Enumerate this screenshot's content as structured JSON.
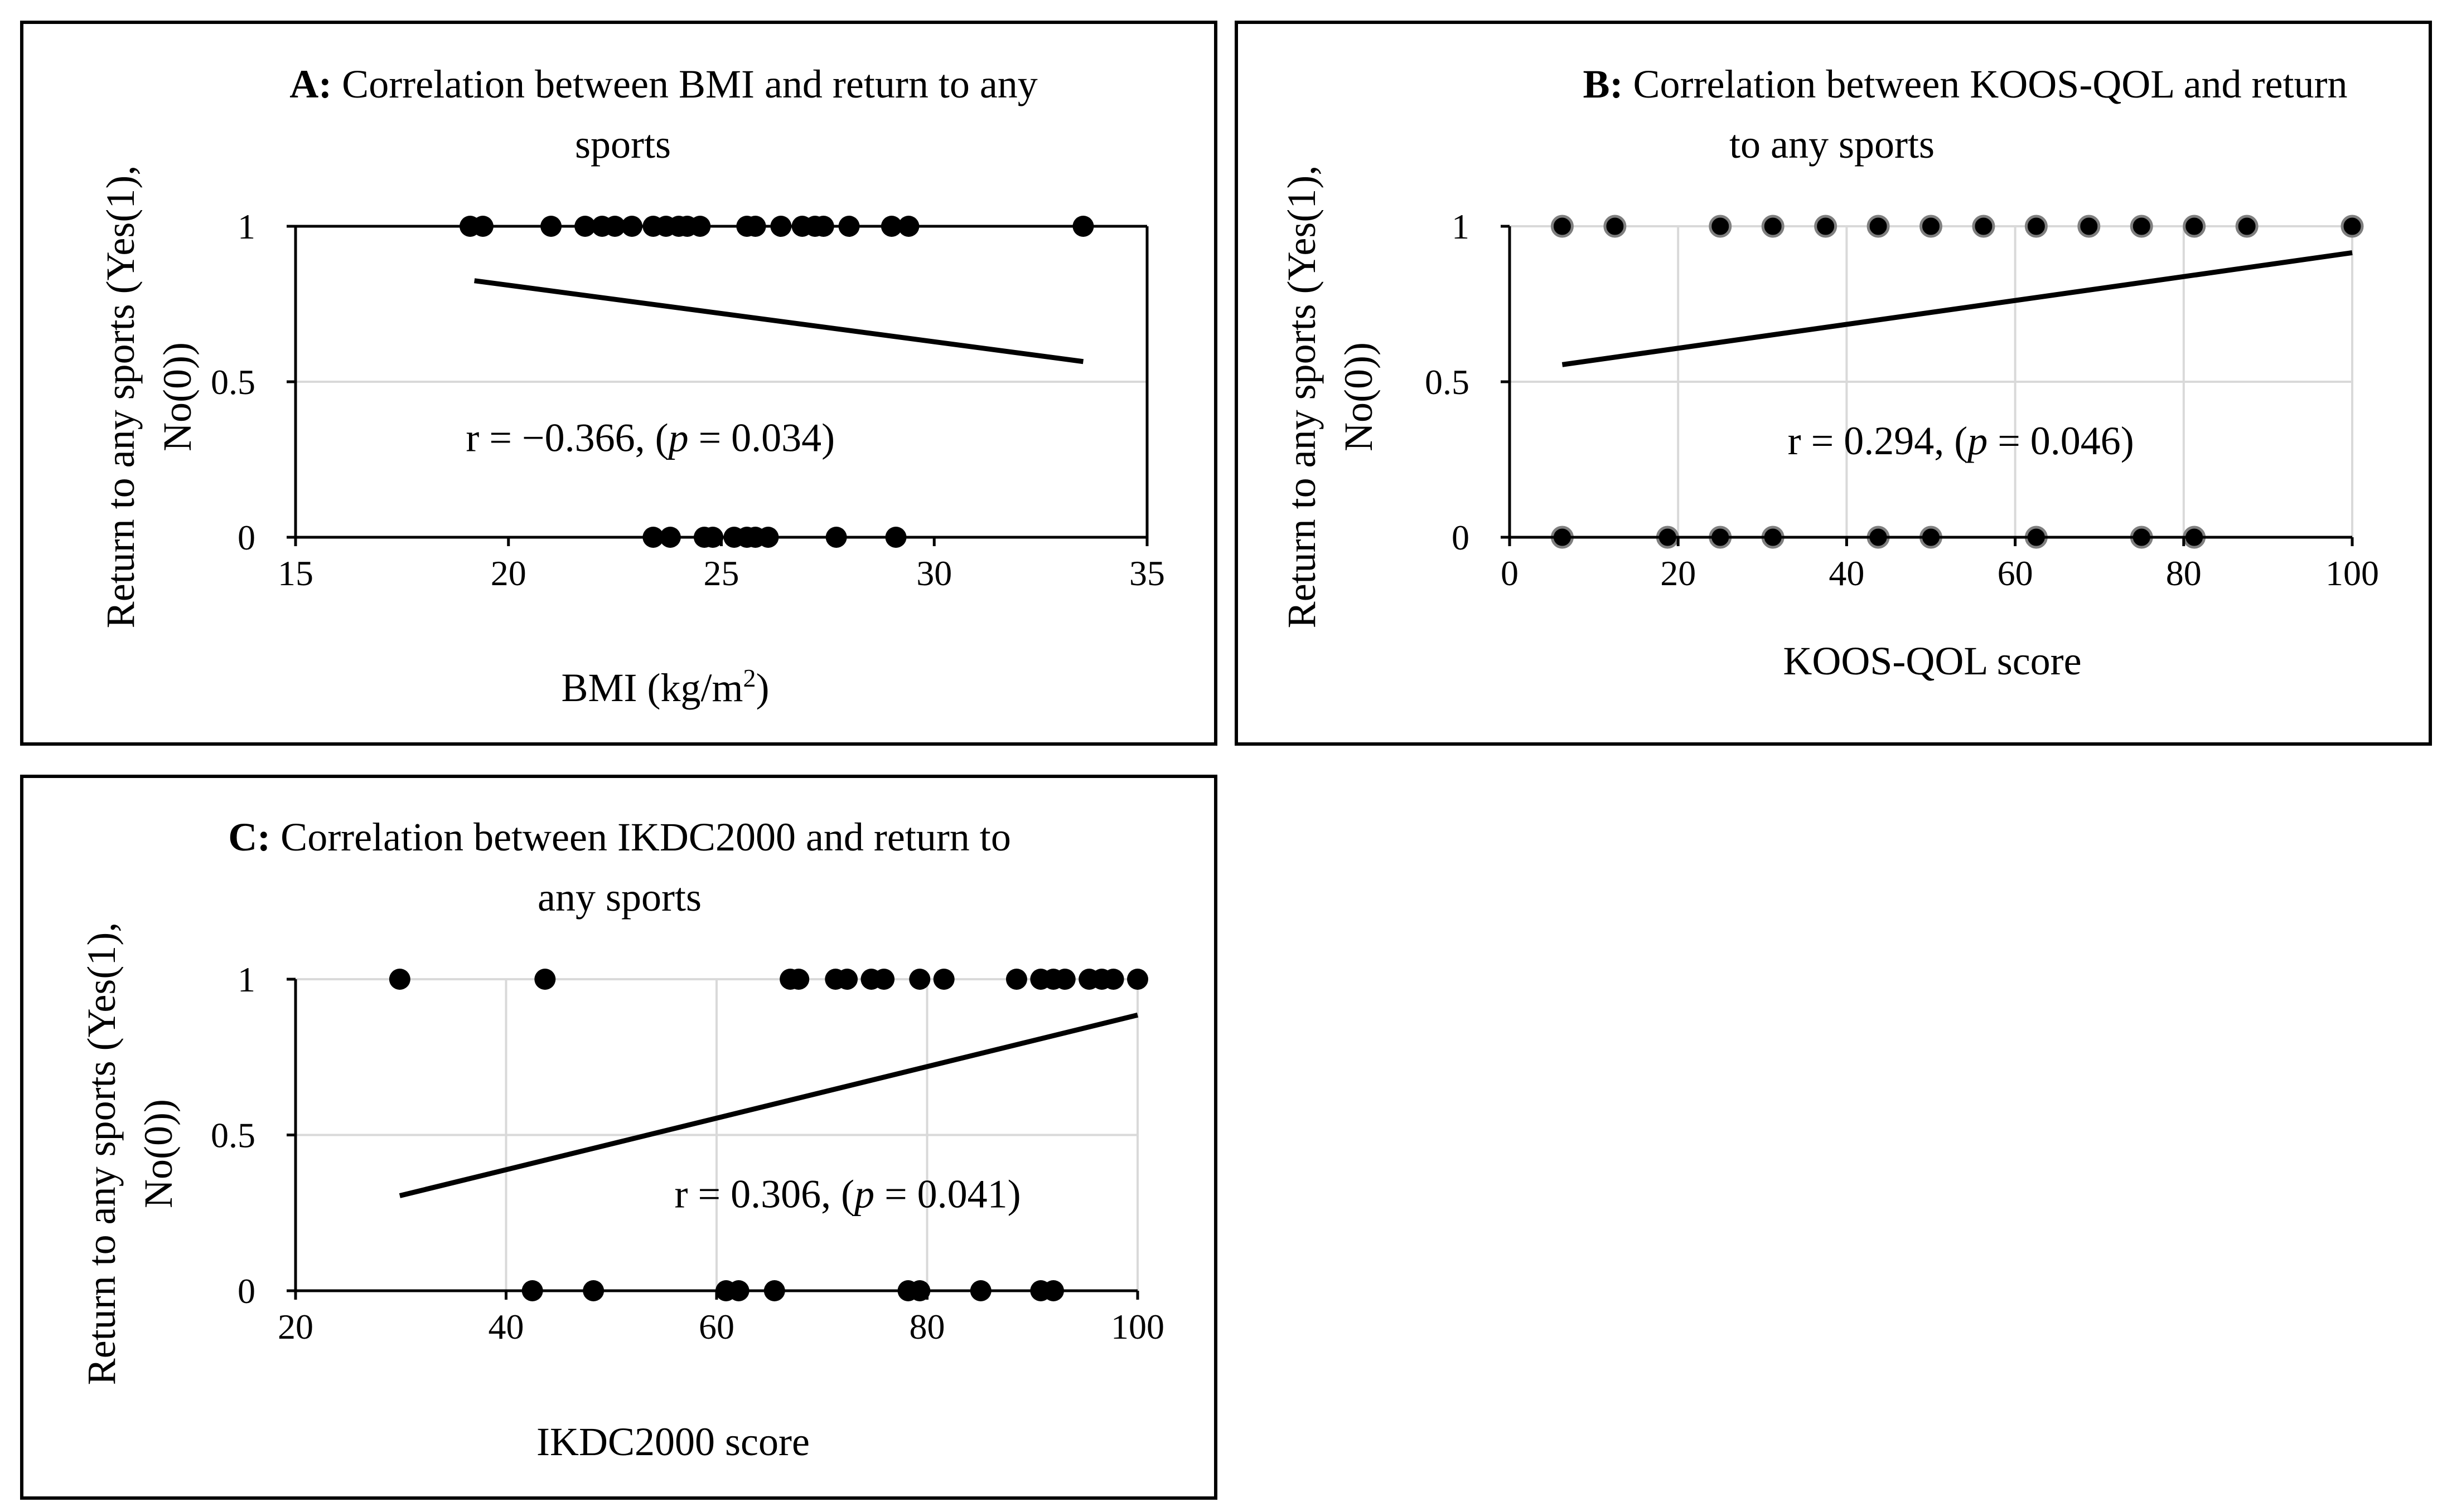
{
  "colors": {
    "ink": "#000000",
    "grid": "#d9d9d9",
    "background": "#ffffff",
    "marker_edge_b": "#7f7f7f"
  },
  "chart_data": [
    {
      "id": "A",
      "type": "scatter",
      "panel_label": "A:",
      "title_line1": "Correlation between BMI and return to any",
      "title_line2": "sports",
      "xlabel": "BMI (kg/m",
      "xlabel_sup": "2",
      "xlabel_tail": ")",
      "ylabel_line1": "Return to any sports (Yes(1),",
      "ylabel_line2": "No(0))",
      "xlim": [
        15,
        35
      ],
      "ylim": [
        0,
        1
      ],
      "xticks": [
        15,
        20,
        25,
        30,
        35
      ],
      "xtick_labels": [
        "15",
        "20",
        "25",
        "30",
        "35"
      ],
      "yticks": [
        0,
        0.5,
        1
      ],
      "ytick_labels": [
        "0",
        "0.5",
        "1"
      ],
      "vertical_grid": false,
      "annotation_prefix": "r = −0.366, (",
      "annotation_italic": "p",
      "annotation_suffix": " = 0.034)",
      "annotation_pos": [
        19,
        0.32
      ],
      "points": [
        {
          "x": 19.1,
          "y": 1
        },
        {
          "x": 19.4,
          "y": 1
        },
        {
          "x": 21.0,
          "y": 1
        },
        {
          "x": 21.8,
          "y": 1
        },
        {
          "x": 22.2,
          "y": 1
        },
        {
          "x": 22.5,
          "y": 1
        },
        {
          "x": 22.9,
          "y": 1
        },
        {
          "x": 23.4,
          "y": 1
        },
        {
          "x": 23.7,
          "y": 1
        },
        {
          "x": 24.0,
          "y": 1
        },
        {
          "x": 24.2,
          "y": 1
        },
        {
          "x": 24.5,
          "y": 1
        },
        {
          "x": 25.6,
          "y": 1
        },
        {
          "x": 25.8,
          "y": 1
        },
        {
          "x": 26.4,
          "y": 1
        },
        {
          "x": 26.9,
          "y": 1
        },
        {
          "x": 27.2,
          "y": 1
        },
        {
          "x": 27.4,
          "y": 1
        },
        {
          "x": 28.0,
          "y": 1
        },
        {
          "x": 29.0,
          "y": 1
        },
        {
          "x": 29.4,
          "y": 1
        },
        {
          "x": 33.5,
          "y": 1
        },
        {
          "x": 23.4,
          "y": 0
        },
        {
          "x": 23.8,
          "y": 0
        },
        {
          "x": 24.6,
          "y": 0
        },
        {
          "x": 24.8,
          "y": 0
        },
        {
          "x": 25.3,
          "y": 0
        },
        {
          "x": 25.6,
          "y": 0
        },
        {
          "x": 25.8,
          "y": 0
        },
        {
          "x": 26.1,
          "y": 0
        },
        {
          "x": 27.7,
          "y": 0
        },
        {
          "x": 29.1,
          "y": 0
        }
      ],
      "trendline": [
        [
          19.2,
          0.825
        ],
        [
          33.5,
          0.565
        ]
      ]
    },
    {
      "id": "B",
      "type": "scatter",
      "panel_label": "B:",
      "title_line1": "Correlation between KOOS-QOL and return",
      "title_line2": "to any sports",
      "xlabel": "KOOS-QOL score",
      "xlabel_sup": "",
      "xlabel_tail": "",
      "ylabel_line1": "Return to any sports (Yes(1),",
      "ylabel_line2": "No(0))",
      "xlim": [
        0,
        100
      ],
      "ylim": [
        0,
        1
      ],
      "xticks": [
        0,
        20,
        40,
        60,
        80,
        100
      ],
      "xtick_labels": [
        "0",
        "20",
        "40",
        "60",
        "80",
        "100"
      ],
      "yticks": [
        0,
        0.5,
        1
      ],
      "ytick_labels": [
        "0",
        "0.5",
        "1"
      ],
      "vertical_grid": true,
      "annotation_prefix": "r = 0.294, (",
      "annotation_italic": "p",
      "annotation_suffix": " = 0.046)",
      "annotation_pos": [
        33,
        0.31
      ],
      "points": [
        {
          "x": 6.25,
          "y": 1
        },
        {
          "x": 12.5,
          "y": 1
        },
        {
          "x": 25,
          "y": 1
        },
        {
          "x": 31.25,
          "y": 1
        },
        {
          "x": 37.5,
          "y": 1
        },
        {
          "x": 43.75,
          "y": 1
        },
        {
          "x": 50,
          "y": 1
        },
        {
          "x": 56.25,
          "y": 1
        },
        {
          "x": 62.5,
          "y": 1
        },
        {
          "x": 68.75,
          "y": 1
        },
        {
          "x": 75,
          "y": 1
        },
        {
          "x": 81.25,
          "y": 1
        },
        {
          "x": 87.5,
          "y": 1
        },
        {
          "x": 100,
          "y": 1
        },
        {
          "x": 6.25,
          "y": 0
        },
        {
          "x": 18.75,
          "y": 0
        },
        {
          "x": 25,
          "y": 0
        },
        {
          "x": 31.25,
          "y": 0
        },
        {
          "x": 43.75,
          "y": 0
        },
        {
          "x": 50,
          "y": 0
        },
        {
          "x": 62.5,
          "y": 0
        },
        {
          "x": 75,
          "y": 0
        },
        {
          "x": 81.25,
          "y": 0
        }
      ],
      "trendline": [
        [
          6.25,
          0.555
        ],
        [
          100,
          0.915
        ]
      ]
    },
    {
      "id": "C",
      "type": "scatter",
      "panel_label": "C:",
      "title_line1": "Correlation between IKDC2000 and return to",
      "title_line2": "any sports",
      "xlabel": "IKDC2000 score",
      "xlabel_sup": "",
      "xlabel_tail": "",
      "ylabel_line1": "Return to any sports (Yes(1),",
      "ylabel_line2": "No(0))",
      "xlim": [
        20,
        100
      ],
      "ylim": [
        0,
        1
      ],
      "xticks": [
        20,
        40,
        60,
        80,
        100
      ],
      "xtick_labels": [
        "20",
        "40",
        "60",
        "80",
        "100"
      ],
      "yticks": [
        0,
        0.5,
        1
      ],
      "ytick_labels": [
        "0",
        "0.5",
        "1"
      ],
      "vertical_grid": true,
      "annotation_prefix": "r = 0.306, (",
      "annotation_italic": "p",
      "annotation_suffix": " = 0.041)",
      "annotation_pos": [
        56,
        0.31
      ],
      "points": [
        {
          "x": 29.9,
          "y": 1
        },
        {
          "x": 43.7,
          "y": 1
        },
        {
          "x": 67.0,
          "y": 1
        },
        {
          "x": 67.8,
          "y": 1
        },
        {
          "x": 71.3,
          "y": 1
        },
        {
          "x": 72.4,
          "y": 1
        },
        {
          "x": 74.7,
          "y": 1
        },
        {
          "x": 75.9,
          "y": 1
        },
        {
          "x": 79.3,
          "y": 1
        },
        {
          "x": 81.6,
          "y": 1
        },
        {
          "x": 88.5,
          "y": 1
        },
        {
          "x": 90.8,
          "y": 1
        },
        {
          "x": 92.0,
          "y": 1
        },
        {
          "x": 93.1,
          "y": 1
        },
        {
          "x": 95.4,
          "y": 1
        },
        {
          "x": 96.6,
          "y": 1
        },
        {
          "x": 97.7,
          "y": 1
        },
        {
          "x": 100,
          "y": 1
        },
        {
          "x": 42.5,
          "y": 0
        },
        {
          "x": 48.3,
          "y": 0
        },
        {
          "x": 60.9,
          "y": 0
        },
        {
          "x": 62.1,
          "y": 0
        },
        {
          "x": 65.5,
          "y": 0
        },
        {
          "x": 78.2,
          "y": 0
        },
        {
          "x": 79.3,
          "y": 0
        },
        {
          "x": 85.1,
          "y": 0
        },
        {
          "x": 90.8,
          "y": 0
        },
        {
          "x": 92.0,
          "y": 0
        }
      ],
      "trendline": [
        [
          29.9,
          0.305
        ],
        [
          100,
          0.885
        ]
      ]
    }
  ]
}
